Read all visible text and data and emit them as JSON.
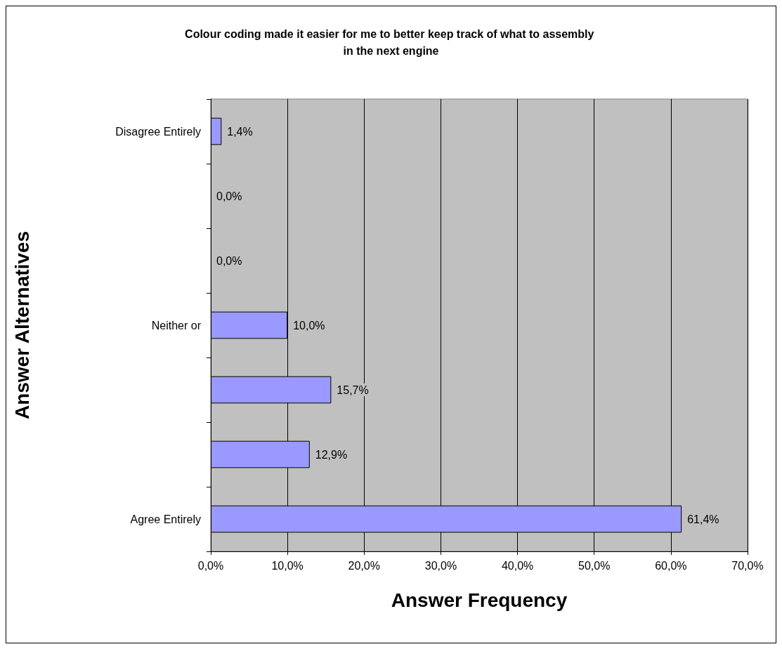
{
  "chart_data": {
    "type": "bar",
    "orientation": "horizontal",
    "title": "Colour coding made it easier for me to better keep track of what to assembly in the next engine",
    "xlabel": "Answer Frequency",
    "ylabel": "Answer Alternatives",
    "categories": [
      "Disagree Entirely",
      null,
      null,
      "Neither or",
      null,
      null,
      "Agree Entirely"
    ],
    "values": [
      1.4,
      0,
      0,
      10,
      15.7,
      12.9,
      61.4
    ],
    "value_labels": [
      "1,4%",
      "0,0%",
      "0,0%",
      "10,0%",
      "15,7%",
      "12,9%",
      "61,4%"
    ],
    "color": "#9999ff",
    "xlim": [
      0,
      70
    ],
    "xticks": [
      {
        "value": 0,
        "label": "0,0%"
      },
      {
        "value": 10,
        "label": "10,0%"
      },
      {
        "value": 20,
        "label": "20,0%"
      },
      {
        "value": 30,
        "label": "30,0%"
      },
      {
        "value": 40,
        "label": "40,0%"
      },
      {
        "value": 50,
        "label": "50,0%"
      },
      {
        "value": 60,
        "label": "60,0%"
      },
      {
        "value": 70,
        "label": "70,0%"
      }
    ],
    "grid": "x"
  }
}
